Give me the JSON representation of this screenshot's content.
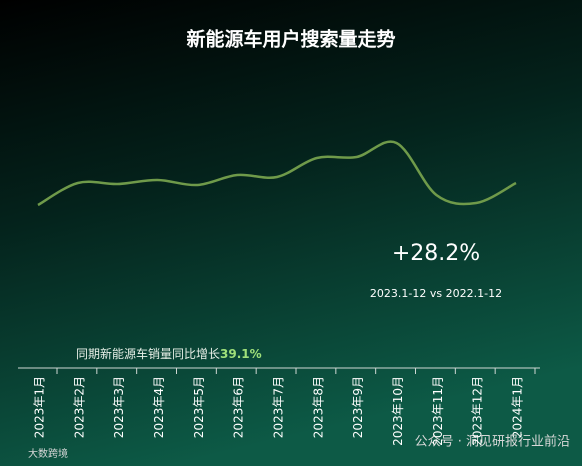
{
  "chart_data": {
    "type": "line",
    "title": "新能源车用户搜索量走势",
    "categories": [
      "2023年1月",
      "2023年2月",
      "2023年3月",
      "2023年4月",
      "2023年5月",
      "2023年6月",
      "2023年7月",
      "2023年8月",
      "2023年9月",
      "2023年10月",
      "2023年11月",
      "2023年12月",
      "2024年1月"
    ],
    "values": [
      45,
      67,
      66,
      70,
      65,
      75,
      73,
      92,
      93,
      107,
      55,
      47,
      67
    ],
    "color": "#6f9a4a",
    "growth": "+28.2%",
    "period": "2023.1-12 vs 2022.1-12",
    "sales_note": "同期新能源车销量同比增长",
    "sales_growth": "39.1%",
    "watermark": "公众号 · 洞见研报行业前沿",
    "logo_text": "大数跨境"
  }
}
